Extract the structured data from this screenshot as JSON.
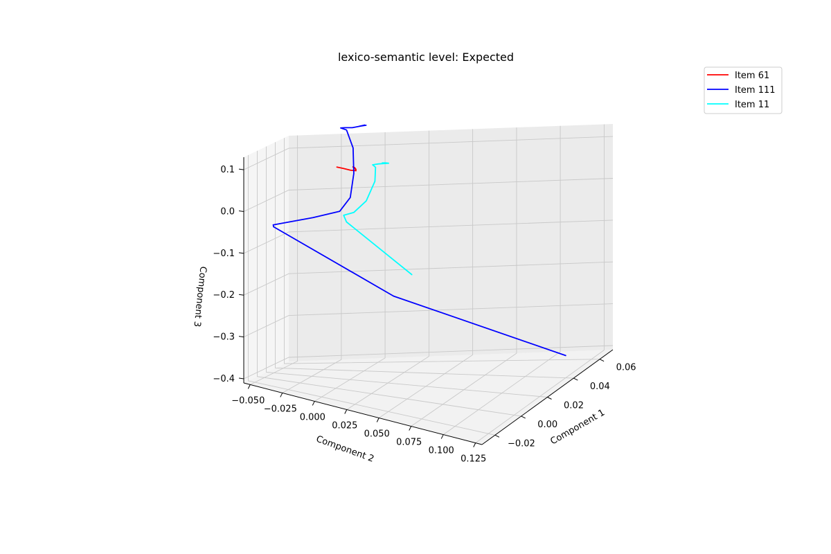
{
  "chart_data": {
    "type": "line",
    "projection": "3d",
    "title": "lexico-semantic level: Expected",
    "axes": {
      "x": {
        "label": "Component 1",
        "range": [
          -0.03,
          0.07
        ],
        "ticks": [
          -0.02,
          0.0,
          0.02,
          0.04,
          0.06
        ],
        "tick_labels": [
          "−0.02",
          "0.00",
          "0.02",
          "0.04",
          "0.06"
        ]
      },
      "y": {
        "label": "Component 2",
        "range": [
          -0.055,
          0.13
        ],
        "ticks": [
          -0.05,
          -0.025,
          0.0,
          0.025,
          0.05,
          0.075,
          0.1,
          0.125
        ],
        "tick_labels": [
          "−0.050",
          "−0.025",
          "0.000",
          "0.025",
          "0.050",
          "0.075",
          "0.100",
          "0.125"
        ]
      },
      "z": {
        "label": "Component 3",
        "range": [
          -0.41,
          0.13
        ],
        "ticks": [
          -0.4,
          -0.3,
          -0.2,
          -0.1,
          0.0,
          0.1
        ],
        "tick_labels": [
          "−0.4",
          "−0.3",
          "−0.2",
          "−0.1",
          "0.0",
          "0.1"
        ]
      }
    },
    "grid": true,
    "legend_position": "top-right",
    "series": [
      {
        "name": "Item 61",
        "color": "#ff0000",
        "points": [
          [
            0.01,
            -0.004,
            0.107
          ],
          [
            0.013,
            -0.001,
            0.102
          ],
          [
            0.015,
            0.003,
            0.097
          ],
          [
            0.016,
            0.006,
            0.096
          ],
          [
            0.018,
            0.004,
            0.101
          ],
          [
            0.016,
            0.006,
            0.099
          ],
          [
            0.018,
            0.003,
            0.102
          ]
        ]
      },
      {
        "name": "Item 111",
        "color": "#0000ff",
        "points": [
          [
            0.06,
            0.11,
            -0.4
          ],
          [
            0.058,
            0.01,
            -0.25
          ],
          [
            0.055,
            -0.06,
            -0.08
          ],
          [
            0.054,
            -0.06,
            -0.075
          ],
          [
            0.05,
            -0.035,
            -0.055
          ],
          [
            0.04,
            -0.015,
            -0.03
          ],
          [
            0.025,
            -0.002,
            0.02
          ],
          [
            0.015,
            0.005,
            0.09
          ],
          [
            0.008,
            0.008,
            0.16
          ],
          [
            0.005,
            0.005,
            0.205
          ],
          [
            0.005,
            0.001,
            0.208
          ],
          [
            0.005,
            0.004,
            0.21
          ],
          [
            0.003,
            0.01,
            0.215
          ],
          [
            0.003,
            0.016,
            0.222
          ],
          [
            0.004,
            0.018,
            0.224
          ],
          [
            0.004,
            0.014,
            0.219
          ],
          [
            0.004,
            0.019,
            0.224
          ]
        ]
      },
      {
        "name": "Item 11",
        "color": "#00ffff",
        "points": [
          [
            0.005,
            0.05,
            -0.12
          ],
          [
            0.005,
            0.005,
            -0.015
          ],
          [
            0.005,
            0.003,
            0.0
          ],
          [
            0.005,
            0.01,
            0.01
          ],
          [
            0.006,
            0.018,
            0.04
          ],
          [
            0.006,
            0.024,
            0.09
          ],
          [
            0.005,
            0.025,
            0.125
          ],
          [
            0.005,
            0.023,
            0.13
          ],
          [
            0.005,
            0.027,
            0.134
          ],
          [
            0.005,
            0.034,
            0.139
          ],
          [
            0.006,
            0.031,
            0.137
          ],
          [
            0.006,
            0.029,
            0.136
          ]
        ]
      }
    ]
  }
}
